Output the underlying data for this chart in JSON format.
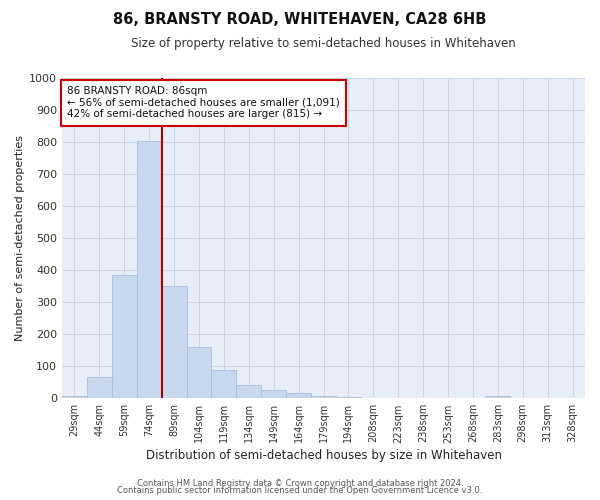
{
  "title": "86, BRANSTY ROAD, WHITEHAVEN, CA28 6HB",
  "subtitle": "Size of property relative to semi-detached houses in Whitehaven",
  "xlabel": "Distribution of semi-detached houses by size in Whitehaven",
  "ylabel": "Number of semi-detached properties",
  "bar_color": "#c8d8ee",
  "bar_edge_color": "#aabdd8",
  "categories": [
    "29sqm",
    "44sqm",
    "59sqm",
    "74sqm",
    "89sqm",
    "104sqm",
    "119sqm",
    "134sqm",
    "149sqm",
    "164sqm",
    "179sqm",
    "194sqm",
    "208sqm",
    "223sqm",
    "238sqm",
    "253sqm",
    "268sqm",
    "283sqm",
    "298sqm",
    "313sqm",
    "328sqm"
  ],
  "values": [
    8,
    67,
    385,
    805,
    350,
    160,
    88,
    42,
    25,
    18,
    7,
    5,
    0,
    0,
    0,
    0,
    0,
    8,
    0,
    0,
    0
  ],
  "vline_x": 3.5,
  "property_line_label": "86 BRANSTY ROAD: 86sqm",
  "annotation_line1": "← 56% of semi-detached houses are smaller (1,091)",
  "annotation_line2": "42% of semi-detached houses are larger (815) →",
  "annotation_box_color": "#ffffff",
  "annotation_box_edge_color": "#cc0000",
  "vline_color": "#aa0000",
  "ylim": [
    0,
    1000
  ],
  "yticks": [
    0,
    100,
    200,
    300,
    400,
    500,
    600,
    700,
    800,
    900,
    1000
  ],
  "grid_color": "#c8d4e8",
  "background_color": "#e8eef8",
  "footer_line1": "Contains HM Land Registry data © Crown copyright and database right 2024.",
  "footer_line2": "Contains public sector information licensed under the Open Government Licence v3.0."
}
